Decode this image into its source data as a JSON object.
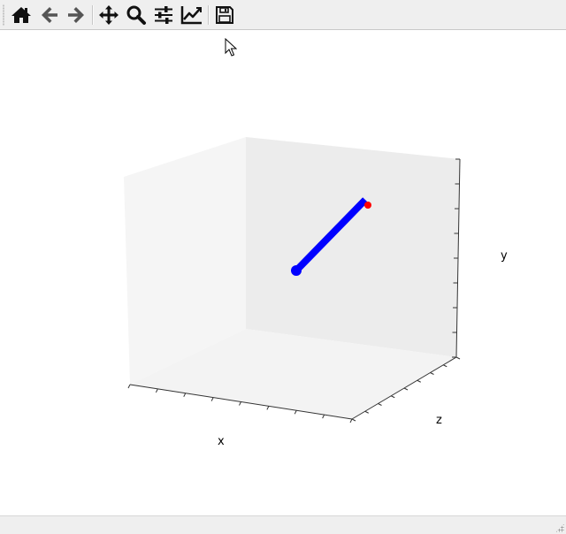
{
  "toolbar": {
    "buttons": [
      {
        "name": "home-button",
        "icon": "home-icon"
      },
      {
        "name": "back-button",
        "icon": "arrow-left-icon"
      },
      {
        "name": "forward-button",
        "icon": "arrow-right-icon"
      },
      {
        "name": "pan-button",
        "icon": "move-icon"
      },
      {
        "name": "zoom-button",
        "icon": "magnifier-icon"
      },
      {
        "name": "subplots-button",
        "icon": "sliders-icon"
      },
      {
        "name": "edit-axis-button",
        "icon": "line-chart-icon"
      },
      {
        "name": "save-button",
        "icon": "floppy-disk-icon"
      }
    ]
  },
  "plot": {
    "xlabel": "x",
    "ylabel": "y",
    "zlabel": "z"
  },
  "colors": {
    "line": "#0000ff",
    "start_marker": "#0000ff",
    "end_marker": "#ff0000",
    "pane": "#f2f2f2",
    "toolbar_bg": "#efefef"
  },
  "statusbar": {
    "message": ""
  }
}
